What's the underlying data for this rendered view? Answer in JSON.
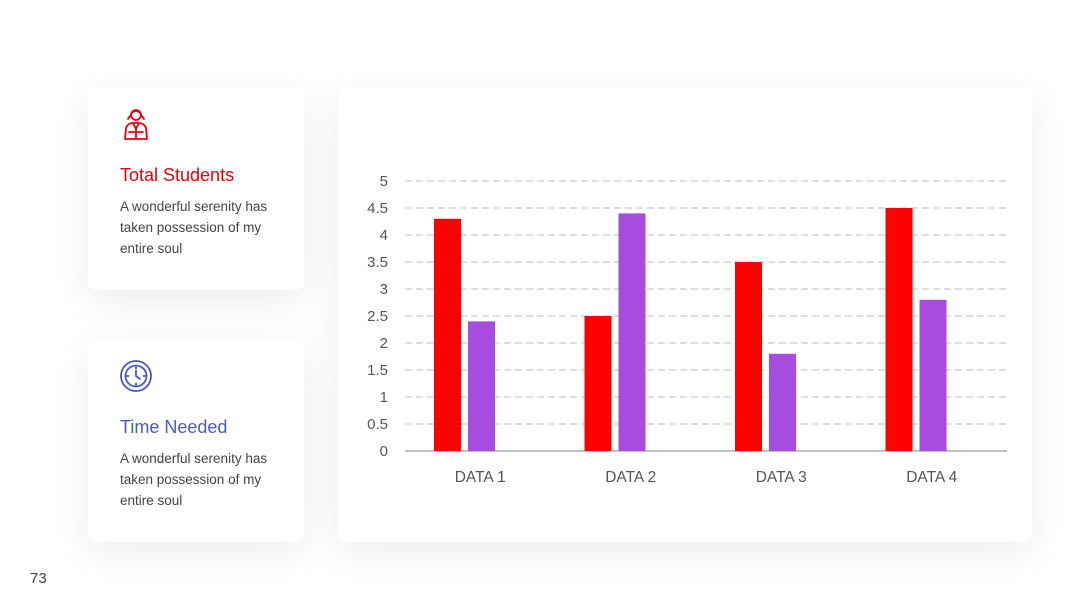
{
  "cards": [
    {
      "title": "Total Students",
      "description": "A wonderful serenity has taken possession of my entire soul",
      "icon": "student-icon",
      "color": "#e8000b"
    },
    {
      "title": "Time Needed",
      "description": "A wonderful serenity has taken possession of my entire soul",
      "icon": "clock-icon",
      "color": "#4a5bbd"
    }
  ],
  "page_number": "73",
  "chart_data": {
    "type": "bar",
    "categories": [
      "DATA 1",
      "DATA 2",
      "DATA 3",
      "DATA 4"
    ],
    "series": [
      {
        "values": [
          4.3,
          2.5,
          3.5,
          4.5
        ],
        "color": "#ff0000"
      },
      {
        "values": [
          2.4,
          4.4,
          1.8,
          2.8
        ],
        "color": "#a64de0"
      }
    ],
    "ylim": [
      0,
      5
    ],
    "yticks": [
      "0",
      "0.5",
      "1",
      "1.5",
      "2",
      "2.5",
      "3",
      "3.5",
      "4",
      "4.5",
      "5"
    ],
    "grid": true,
    "title": "",
    "xlabel": "",
    "ylabel": ""
  }
}
